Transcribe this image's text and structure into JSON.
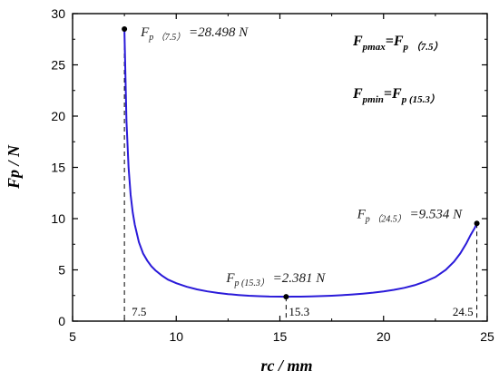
{
  "chart_data": {
    "type": "line",
    "xlabel": "rc / mm",
    "ylabel": "Fp / N",
    "xlim": [
      5,
      25
    ],
    "ylim": [
      0,
      30
    ],
    "xticks": [
      5,
      10,
      15,
      20,
      25
    ],
    "yticks": [
      0,
      5,
      10,
      15,
      20,
      25,
      30
    ],
    "grid": false,
    "line_color": "#2a1ad9",
    "series": [
      {
        "x": [
          7.5,
          7.6,
          7.7,
          7.8,
          7.9,
          8.0,
          8.2,
          8.4,
          8.6,
          8.8,
          9.0,
          9.3,
          9.6,
          10.0,
          10.5,
          11.0,
          11.5,
          12.0,
          12.5,
          13.0,
          13.5,
          14.0,
          14.5,
          15.0,
          15.3,
          15.6,
          16.0,
          16.5,
          17.0,
          17.5,
          18.0,
          18.5,
          19.0,
          19.5,
          20.0,
          20.5,
          21.0,
          21.5,
          22.0,
          22.5,
          23.0,
          23.4,
          23.7,
          24.0,
          24.2,
          24.4,
          24.5
        ],
        "y": [
          28.498,
          19.5,
          15.0,
          12.3,
          10.6,
          9.4,
          7.7,
          6.6,
          5.9,
          5.35,
          4.95,
          4.45,
          4.05,
          3.7,
          3.35,
          3.1,
          2.9,
          2.75,
          2.64,
          2.55,
          2.48,
          2.43,
          2.4,
          2.385,
          2.381,
          2.385,
          2.39,
          2.41,
          2.44,
          2.48,
          2.53,
          2.6,
          2.68,
          2.78,
          2.9,
          3.05,
          3.25,
          3.5,
          3.85,
          4.3,
          5.0,
          5.8,
          6.6,
          7.6,
          8.4,
          9.1,
          9.534
        ]
      }
    ],
    "points": [
      {
        "x": 7.5,
        "y": 28.498,
        "label_main": "F",
        "label_sub1": "p",
        "label_sub2": "（7.5）",
        "label_val": "=28.498 N",
        "foot": "7.5"
      },
      {
        "x": 15.3,
        "y": 2.381,
        "label_main": "F",
        "label_sub1": "p",
        "label_sub2": "(15.3）",
        "label_val": "=2.381 N",
        "foot": "15.3"
      },
      {
        "x": 24.5,
        "y": 9.534,
        "label_main": "F",
        "label_sub1": "p",
        "label_sub2": "（24.5）",
        "label_val": "=9.534 N",
        "foot": "24.5"
      }
    ],
    "annotations": {
      "max_line": {
        "a": "F",
        "a_sub": "pmax",
        "eq": "=",
        "b": "F",
        "b_sub1": "p",
        "b_sub2": "（7.5）"
      },
      "min_line": {
        "a": "F",
        "a_sub": "pmin",
        "eq": "=",
        "b": "F",
        "b_sub1": "p",
        "b_sub2": "(15.3）"
      }
    }
  }
}
